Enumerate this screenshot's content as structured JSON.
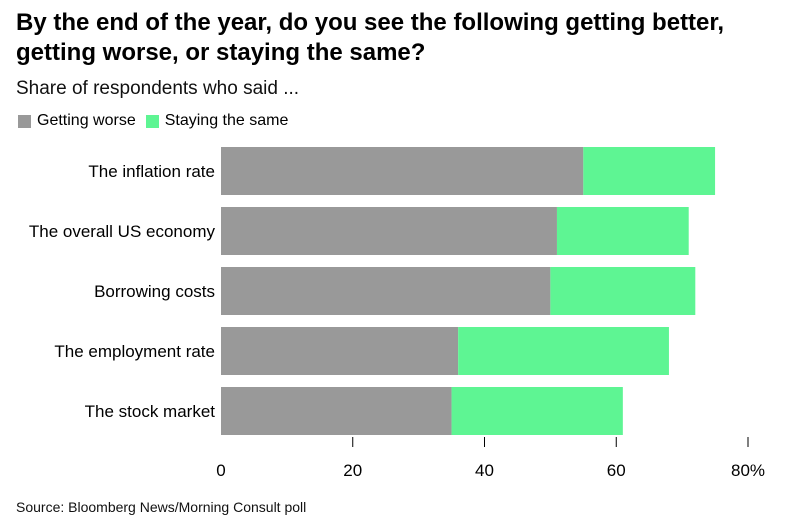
{
  "chart_data": {
    "type": "bar",
    "orientation": "horizontal",
    "stacked": true,
    "title": "By the end of the year, do you see the following getting better, getting worse, or staying the same?",
    "subtitle": "Share of respondents who said ...",
    "categories": [
      "The inflation rate",
      "The overall US economy",
      "Borrowing costs",
      "The employment rate",
      "The stock market"
    ],
    "series": [
      {
        "name": "Getting worse",
        "color": "#999999",
        "values": [
          55,
          51,
          50,
          36,
          35
        ]
      },
      {
        "name": "Staying the same",
        "color": "#5ef593",
        "values": [
          20,
          20,
          22,
          32,
          26
        ]
      }
    ],
    "xlim": [
      0,
      80
    ],
    "xticks": [
      0,
      20,
      40,
      60,
      80
    ],
    "xtick_labels": [
      "0",
      "20",
      "40",
      "60",
      "80%"
    ],
    "legend": "top-left",
    "grid": false,
    "source": "Source: Bloomberg News/Morning Consult poll"
  }
}
